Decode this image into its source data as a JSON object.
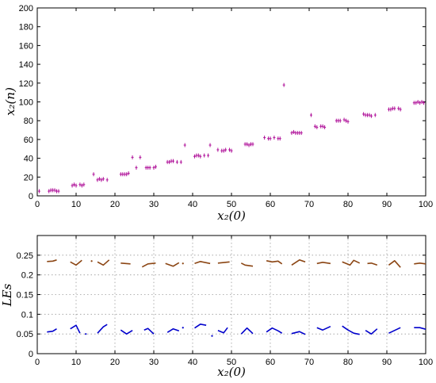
{
  "chart_data": [
    {
      "type": "scatter",
      "xlabel": "x₂(0)",
      "ylabel": "x₂(n)",
      "xlim": [
        0,
        100
      ],
      "ylim": [
        0,
        200
      ],
      "xticks": [
        "0",
        "10",
        "20",
        "30",
        "40",
        "50",
        "60",
        "70",
        "80",
        "90",
        "100"
      ],
      "yticks": [
        "0",
        "20",
        "40",
        "60",
        "80",
        "100",
        "120",
        "140",
        "160",
        "180",
        "200"
      ],
      "grid": false,
      "marker_color": "#b0139a",
      "points": [
        [
          0.5,
          5
        ],
        [
          3,
          5
        ],
        [
          3.5,
          6
        ],
        [
          4,
          6
        ],
        [
          4.5,
          6
        ],
        [
          5,
          5
        ],
        [
          5.5,
          5
        ],
        [
          9,
          11
        ],
        [
          9.5,
          12
        ],
        [
          10,
          11
        ],
        [
          11,
          12
        ],
        [
          11.5,
          11
        ],
        [
          12,
          12
        ],
        [
          14.5,
          23
        ],
        [
          15.5,
          17
        ],
        [
          16,
          18
        ],
        [
          16.5,
          17
        ],
        [
          17,
          18
        ],
        [
          18,
          17
        ],
        [
          21.5,
          23
        ],
        [
          22,
          23
        ],
        [
          22.5,
          23
        ],
        [
          23,
          23
        ],
        [
          23.5,
          24
        ],
        [
          24.5,
          41
        ],
        [
          25.5,
          30
        ],
        [
          26.5,
          41
        ],
        [
          28,
          30
        ],
        [
          28.5,
          30
        ],
        [
          29,
          30
        ],
        [
          30,
          30
        ],
        [
          30.5,
          31
        ],
        [
          33.5,
          36
        ],
        [
          34,
          36
        ],
        [
          34.5,
          37
        ],
        [
          35,
          37
        ],
        [
          36,
          36
        ],
        [
          37,
          36
        ],
        [
          38,
          54
        ],
        [
          40.5,
          42
        ],
        [
          41,
          43
        ],
        [
          41.5,
          43
        ],
        [
          42,
          42
        ],
        [
          43,
          43
        ],
        [
          44,
          43
        ],
        [
          44.5,
          54
        ],
        [
          46.5,
          49
        ],
        [
          47.5,
          48
        ],
        [
          48,
          48
        ],
        [
          48.5,
          49
        ],
        [
          49.5,
          49
        ],
        [
          50,
          48
        ],
        [
          53.5,
          55
        ],
        [
          54,
          55
        ],
        [
          54.5,
          54
        ],
        [
          55,
          55
        ],
        [
          55.5,
          55
        ],
        [
          58.5,
          62
        ],
        [
          59.5,
          61
        ],
        [
          60,
          61
        ],
        [
          61,
          62
        ],
        [
          62,
          61
        ],
        [
          62.5,
          61
        ],
        [
          63.5,
          118
        ],
        [
          65.5,
          67
        ],
        [
          66,
          68
        ],
        [
          66.5,
          67
        ],
        [
          67,
          67
        ],
        [
          67.5,
          67
        ],
        [
          68,
          67
        ],
        [
          70.5,
          86
        ],
        [
          71.5,
          74
        ],
        [
          72,
          73
        ],
        [
          73,
          74
        ],
        [
          73.5,
          74
        ],
        [
          74,
          73
        ],
        [
          77,
          80
        ],
        [
          77.5,
          80
        ],
        [
          78,
          80
        ],
        [
          79,
          81
        ],
        [
          79.5,
          80
        ],
        [
          80,
          79
        ],
        [
          84,
          87
        ],
        [
          84.5,
          86
        ],
        [
          85,
          86
        ],
        [
          85.5,
          86
        ],
        [
          86,
          85
        ],
        [
          87,
          86
        ],
        [
          90.5,
          92
        ],
        [
          91,
          92
        ],
        [
          91.5,
          93
        ],
        [
          92,
          93
        ],
        [
          93,
          93
        ],
        [
          93.5,
          92
        ],
        [
          97,
          99
        ],
        [
          97.5,
          99
        ],
        [
          98,
          100
        ],
        [
          98.5,
          99
        ],
        [
          99,
          100
        ],
        [
          99.5,
          99
        ]
      ]
    },
    {
      "type": "line",
      "xlabel": "x₂(0)",
      "ylabel": "LEs",
      "xlim": [
        0,
        100
      ],
      "ylim": [
        0,
        0.3
      ],
      "xticks": [
        "0",
        "10",
        "20",
        "30",
        "40",
        "50",
        "60",
        "70",
        "80",
        "90",
        "100"
      ],
      "yticks": [
        "0",
        "0.05",
        "0.1",
        "0.15",
        "0.2",
        "0.25"
      ],
      "grid": true,
      "series": [
        {
          "color": "#8b4513",
          "segments": [
            [
              [
                2.5,
                0.234
              ],
              [
                4,
                0.235
              ],
              [
                5,
                0.238
              ]
            ],
            [
              [
                8.5,
                0.233
              ],
              [
                10,
                0.225
              ],
              [
                11.5,
                0.237
              ]
            ],
            [
              [
                14,
                0.235
              ]
            ],
            [
              [
                15.5,
                0.233
              ],
              [
                17,
                0.225
              ],
              [
                18.5,
                0.238
              ]
            ],
            [
              [
                21.5,
                0.23
              ],
              [
                24,
                0.228
              ]
            ],
            [
              [
                27,
                0.22
              ],
              [
                28.5,
                0.228
              ],
              [
                30.5,
                0.23
              ]
            ],
            [
              [
                33,
                0.229
              ],
              [
                35,
                0.222
              ],
              [
                36.5,
                0.231
              ]
            ],
            [
              [
                37.5,
                0.229
              ]
            ],
            [
              [
                40.5,
                0.229
              ],
              [
                42,
                0.234
              ],
              [
                44.5,
                0.229
              ]
            ],
            [
              [
                46.5,
                0.23
              ],
              [
                49.5,
                0.233
              ]
            ],
            [
              [
                52.5,
                0.23
              ],
              [
                53.5,
                0.225
              ],
              [
                55.5,
                0.222
              ]
            ],
            [
              [
                59,
                0.236
              ],
              [
                60.5,
                0.233
              ],
              [
                62,
                0.235
              ],
              [
                63,
                0.228
              ]
            ],
            [
              [
                65.5,
                0.225
              ],
              [
                67.5,
                0.238
              ],
              [
                69,
                0.233
              ]
            ],
            [
              [
                72,
                0.229
              ],
              [
                73.5,
                0.232
              ],
              [
                75.5,
                0.229
              ]
            ],
            [
              [
                78.5,
                0.233
              ],
              [
                80.5,
                0.225
              ],
              [
                81.5,
                0.237
              ],
              [
                83,
                0.23
              ]
            ],
            [
              [
                85,
                0.229
              ],
              [
                86,
                0.23
              ],
              [
                87.5,
                0.225
              ]
            ],
            [
              [
                90.5,
                0.225
              ],
              [
                92,
                0.236
              ],
              [
                93.5,
                0.219
              ]
            ],
            [
              [
                97,
                0.228
              ],
              [
                98.5,
                0.23
              ],
              [
                100,
                0.228
              ]
            ]
          ]
        },
        {
          "color": "#0000cc",
          "segments": [
            [
              [
                2.5,
                0.055
              ],
              [
                4,
                0.057
              ],
              [
                5,
                0.063
              ]
            ],
            [
              [
                8.5,
                0.063
              ],
              [
                10,
                0.072
              ],
              [
                11,
                0.052
              ]
            ],
            [
              [
                12.5,
                0.05
              ]
            ],
            [
              [
                15.5,
                0.052
              ],
              [
                17,
                0.068
              ],
              [
                18,
                0.074
              ]
            ],
            [
              [
                21.5,
                0.06
              ],
              [
                23,
                0.05
              ],
              [
                24.5,
                0.059
              ]
            ],
            [
              [
                27.5,
                0.06
              ],
              [
                28.5,
                0.064
              ],
              [
                30,
                0.05
              ]
            ],
            [
              [
                33.5,
                0.054
              ],
              [
                35,
                0.063
              ],
              [
                36.5,
                0.058
              ]
            ],
            [
              [
                37.5,
                0.066
              ]
            ],
            [
              [
                40.5,
                0.065
              ],
              [
                42,
                0.075
              ],
              [
                43.5,
                0.072
              ]
            ],
            [
              [
                45,
                0.045
              ]
            ],
            [
              [
                46.5,
                0.059
              ],
              [
                48,
                0.053
              ],
              [
                49,
                0.066
              ]
            ],
            [
              [
                52.5,
                0.05
              ],
              [
                54,
                0.065
              ],
              [
                55.5,
                0.051
              ]
            ],
            [
              [
                59,
                0.055
              ],
              [
                60.5,
                0.065
              ],
              [
                62,
                0.058
              ],
              [
                63,
                0.052
              ]
            ],
            [
              [
                65.5,
                0.051
              ],
              [
                67.5,
                0.056
              ],
              [
                69,
                0.049
              ]
            ],
            [
              [
                72,
                0.066
              ],
              [
                73.5,
                0.06
              ],
              [
                75.5,
                0.069
              ]
            ],
            [
              [
                78.5,
                0.07
              ],
              [
                80,
                0.06
              ],
              [
                81.5,
                0.052
              ],
              [
                83,
                0.049
              ]
            ],
            [
              [
                84.5,
                0.059
              ],
              [
                86,
                0.05
              ],
              [
                87.5,
                0.063
              ]
            ],
            [
              [
                90.5,
                0.052
              ],
              [
                92,
                0.059
              ],
              [
                93.5,
                0.066
              ]
            ],
            [
              [
                97,
                0.066
              ],
              [
                98.5,
                0.066
              ],
              [
                100,
                0.062
              ]
            ]
          ]
        }
      ]
    }
  ]
}
